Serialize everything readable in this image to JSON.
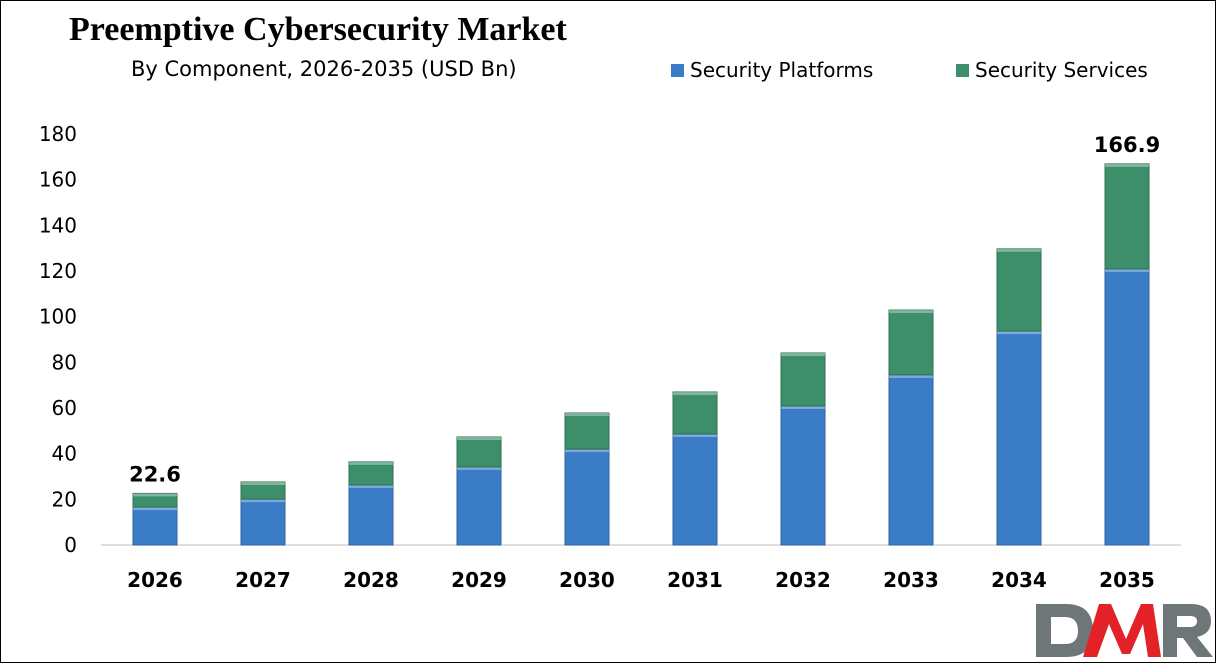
{
  "chart_data": {
    "type": "bar",
    "stacked": true,
    "title": "Preemptive Cybersecurity Market",
    "subtitle": "By Component, 2026-2035 (USD Bn)",
    "categories": [
      "2026",
      "2027",
      "2028",
      "2029",
      "2030",
      "2031",
      "2032",
      "2033",
      "2034",
      "2035"
    ],
    "series": [
      {
        "name": "Security Platforms",
        "color": "#3a7cc6",
        "values": [
          16.6,
          20.1,
          26.3,
          34.2,
          42.0,
          48.6,
          60.9,
          74.5,
          93.7,
          120.9
        ]
      },
      {
        "name": "Security Services",
        "color": "#3c8f6a",
        "values": [
          6.0,
          7.5,
          10.1,
          13.1,
          15.8,
          18.4,
          23.2,
          28.4,
          36.0,
          46.0
        ]
      }
    ],
    "data_labels": {
      "2026": "22.6",
      "2035": "166.9"
    },
    "ylim": [
      0,
      180
    ],
    "yticks": [
      0,
      20,
      40,
      60,
      80,
      100,
      120,
      140,
      160,
      180
    ],
    "legend": "top-right",
    "grid": false
  },
  "logo": {
    "text": "DMR"
  }
}
